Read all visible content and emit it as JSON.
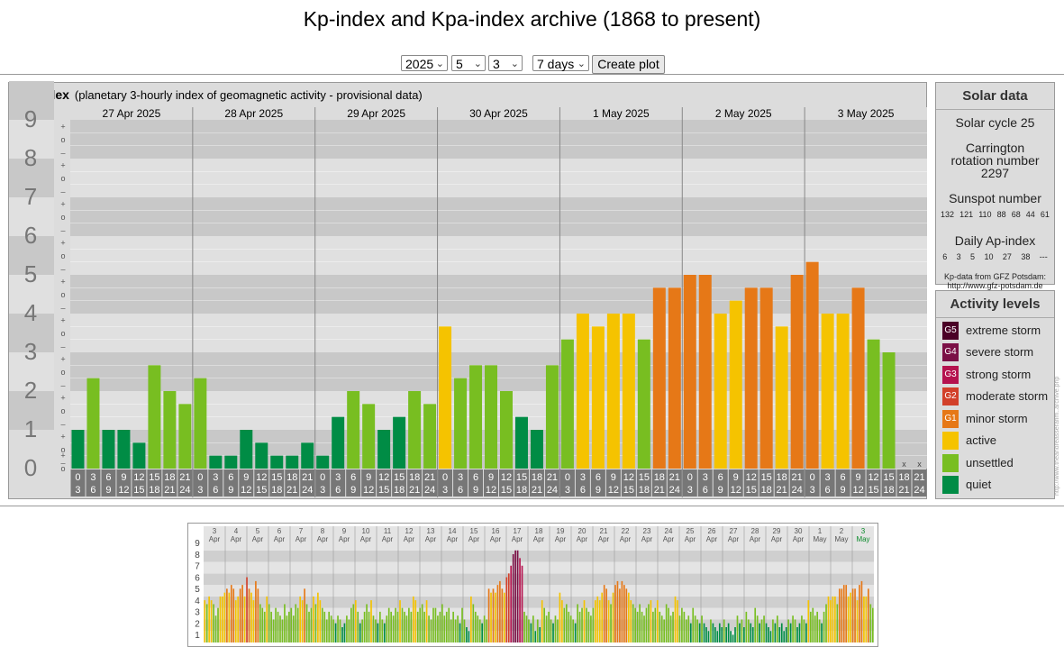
{
  "title": "Kp-index and Kpa-index archive (1868 to present)",
  "controls": {
    "year": "2025",
    "month": "5",
    "day": "3",
    "range": "7 days",
    "create_label": "Create plot"
  },
  "kp_panel": {
    "title": "Kp-index",
    "subtitle": "(planetary 3-hourly index of geomagnetic activity - provisional data)"
  },
  "chart_data": [
    {
      "type": "bar",
      "title": "Kp-index",
      "ylim": [
        0,
        9
      ],
      "y_ticks": [
        "0",
        "1",
        "2",
        "3",
        "4",
        "5",
        "6",
        "7",
        "8",
        "9"
      ],
      "sub_ticks": [
        "+",
        "o",
        "–"
      ],
      "days": [
        "27 Apr 2025",
        "28 Apr 2025",
        "29 Apr 2025",
        "30 Apr 2025",
        "1 May 2025",
        "2 May 2025",
        "3 May 2025"
      ],
      "slot_top": [
        "0",
        "3",
        "6",
        "9",
        "12",
        "15",
        "18",
        "21"
      ],
      "slot_bottom": [
        "3",
        "6",
        "9",
        "12",
        "15",
        "18",
        "21",
        "24"
      ],
      "values": [
        1.0,
        2.333,
        1.0,
        1.0,
        0.667,
        2.667,
        2.0,
        1.667,
        2.333,
        0.333,
        0.333,
        1.0,
        0.667,
        0.333,
        0.333,
        0.667,
        0.333,
        1.333,
        2.0,
        1.667,
        1.0,
        1.333,
        2.0,
        1.667,
        3.667,
        2.333,
        2.667,
        2.667,
        2.0,
        1.333,
        1.0,
        2.667,
        3.333,
        4.0,
        3.667,
        4.0,
        4.0,
        3.333,
        4.667,
        4.667,
        5.0,
        5.0,
        4.0,
        4.333,
        4.667,
        4.667,
        3.667,
        5.0,
        5.333,
        4.0,
        4.0,
        4.667,
        3.333,
        3.0,
        null,
        null
      ],
      "missing_marker": "x",
      "grid": true
    },
    {
      "type": "bar",
      "title": "",
      "ylim": [
        0,
        9
      ],
      "y_ticks": [
        "1",
        "2",
        "3",
        "4",
        "5",
        "6",
        "7",
        "8",
        "9"
      ],
      "day_numbers": [
        "3",
        "4",
        "5",
        "6",
        "7",
        "8",
        "9",
        "10",
        "11",
        "12",
        "13",
        "14",
        "15",
        "16",
        "17",
        "18",
        "19",
        "20",
        "21",
        "22",
        "23",
        "24",
        "25",
        "26",
        "27",
        "28",
        "29",
        "30",
        "1",
        "2",
        "3"
      ],
      "day_months": [
        "Apr",
        "Apr",
        "Apr",
        "Apr",
        "Apr",
        "Apr",
        "Apr",
        "Apr",
        "Apr",
        "Apr",
        "Apr",
        "Apr",
        "Apr",
        "Apr",
        "Apr",
        "Apr",
        "Apr",
        "Apr",
        "Apr",
        "Apr",
        "Apr",
        "Apr",
        "Apr",
        "Apr",
        "Apr",
        "Apr",
        "Apr",
        "Apr",
        "May",
        "May",
        "May"
      ],
      "values": [
        3.67,
        3.33,
        4.0,
        3.67,
        3.33,
        2.33,
        3.0,
        4.0,
        4.0,
        4.33,
        4.67,
        4.33,
        5.0,
        4.67,
        3.67,
        4.0,
        4.67,
        5.0,
        4.0,
        5.67,
        4.67,
        4.33,
        3.67,
        5.33,
        4.67,
        3.33,
        3.0,
        2.67,
        4.0,
        3.33,
        2.67,
        2.0,
        3.0,
        2.67,
        2.33,
        2.0,
        3.33,
        2.33,
        2.67,
        3.0,
        2.33,
        3.33,
        3.0,
        4.0,
        3.67,
        4.67,
        3.33,
        2.67,
        3.0,
        4.0,
        3.33,
        4.33,
        3.67,
        3.0,
        2.67,
        2.0,
        2.67,
        2.33,
        2.0,
        1.67,
        2.33,
        2.0,
        1.33,
        1.67,
        2.33,
        2.0,
        3.0,
        3.33,
        3.67,
        2.67,
        1.67,
        2.0,
        2.67,
        3.33,
        2.67,
        3.67,
        2.33,
        2.0,
        1.67,
        2.67,
        2.0,
        1.67,
        2.33,
        3.0,
        2.67,
        2.33,
        3.0,
        2.67,
        3.67,
        3.0,
        2.67,
        2.33,
        3.0,
        2.67,
        4.0,
        3.67,
        2.67,
        3.0,
        3.33,
        2.67,
        3.67,
        2.33,
        2.0,
        3.0,
        3.0,
        2.33,
        2.67,
        3.33,
        2.33,
        2.67,
        3.0,
        2.0,
        2.67,
        2.0,
        2.33,
        1.67,
        3.0,
        2.0,
        1.33,
        1.0,
        4.0,
        3.33,
        2.67,
        2.33,
        2.0,
        1.67,
        2.33,
        2.0,
        4.67,
        4.33,
        4.67,
        4.33,
        5.0,
        5.33,
        4.67,
        4.33,
        5.67,
        6.0,
        6.67,
        7.67,
        8.0,
        8.0,
        7.33,
        6.67,
        2.67,
        2.33,
        2.0,
        1.67,
        2.33,
        1.0,
        2.0,
        1.33,
        3.67,
        3.0,
        2.33,
        2.67,
        2.0,
        1.67,
        2.33,
        2.0,
        4.33,
        3.67,
        3.0,
        3.33,
        2.67,
        2.33,
        2.0,
        1.67,
        3.33,
        2.67,
        3.0,
        3.67,
        3.0,
        2.67,
        2.33,
        3.0,
        3.67,
        4.0,
        3.67,
        4.33,
        5.0,
        4.67,
        3.67,
        3.33,
        4.33,
        5.0,
        5.33,
        4.67,
        5.33,
        5.0,
        4.67,
        4.33,
        3.67,
        3.33,
        3.0,
        2.67,
        3.33,
        2.67,
        2.33,
        3.0,
        3.33,
        3.67,
        2.67,
        3.0,
        3.67,
        2.67,
        2.33,
        2.0,
        3.33,
        3.0,
        2.33,
        2.67,
        4.0,
        3.67,
        2.33,
        3.0,
        2.67,
        2.0,
        2.33,
        1.67,
        3.0,
        2.33,
        2.0,
        1.67,
        2.33,
        1.67,
        1.33,
        1.0,
        2.0,
        1.67,
        1.33,
        1.0,
        1.67,
        1.33,
        2.0,
        1.33,
        1.67,
        1.0,
        0.67,
        1.33,
        2.33,
        1.67,
        2.0,
        1.33,
        2.67,
        2.0,
        1.67,
        1.33,
        3.0,
        2.33,
        1.67,
        2.0,
        2.33,
        1.67,
        1.33,
        1.0,
        2.0,
        1.67,
        2.33,
        1.33,
        1.67,
        1.0,
        1.33,
        2.0,
        1.67,
        2.33,
        2.0,
        1.33,
        1.67,
        2.33,
        2.0,
        1.67,
        3.67,
        2.67,
        3.0,
        2.33,
        2.67,
        2.0,
        1.67,
        2.67,
        3.33,
        4.0,
        3.67,
        4.0,
        4.0,
        3.33,
        4.67,
        4.67,
        5.0,
        5.0,
        4.0,
        4.33,
        4.67,
        4.67,
        3.67,
        5.0,
        5.33,
        4.0,
        4.0,
        4.67,
        3.33,
        3.0
      ],
      "grid": true
    }
  ],
  "solar": {
    "title": "Solar data",
    "cycle": "Solar cycle 25",
    "carrington": "Carrington rotation number 2297",
    "sunspot_label": "Sunspot number",
    "sunspots": [
      "132",
      "121",
      "110",
      "88",
      "68",
      "44",
      "61"
    ],
    "ap_label": "Daily Ap-index",
    "ap": [
      "6",
      "3",
      "5",
      "10",
      "27",
      "38",
      "---"
    ],
    "source": "Kp-data from GFZ Potsdam:",
    "source_url": "http://www.gfz-potsdam.de"
  },
  "activity": {
    "title": "Activity levels",
    "levels": [
      {
        "code": "G5",
        "label": "extreme storm",
        "color": "#4a0026"
      },
      {
        "code": "G4",
        "label": "severe storm",
        "color": "#7b1046"
      },
      {
        "code": "G3",
        "label": "strong storm",
        "color": "#b5124e"
      },
      {
        "code": "G2",
        "label": "moderate storm",
        "color": "#d2402a"
      },
      {
        "code": "G1",
        "label": "minor storm",
        "color": "#e67817"
      },
      {
        "code": "",
        "label": "active",
        "color": "#f5c300"
      },
      {
        "code": "",
        "label": "unsettled",
        "color": "#78be21"
      },
      {
        "code": "",
        "label": "quiet",
        "color": "#008c45"
      }
    ]
  },
  "side_note": "http://www.theandreasserafim..archive.php",
  "colors": {
    "quiet": "#008c45",
    "unsettled": "#78be21",
    "active": "#f5c300",
    "g1": "#e67817",
    "g2": "#d2402a",
    "g3": "#b5124e",
    "g4": "#7b1046",
    "g5": "#4a0026",
    "band_dark": "#c8c8c8",
    "band_light": "#e0e0e0",
    "label_box": "#777777"
  }
}
